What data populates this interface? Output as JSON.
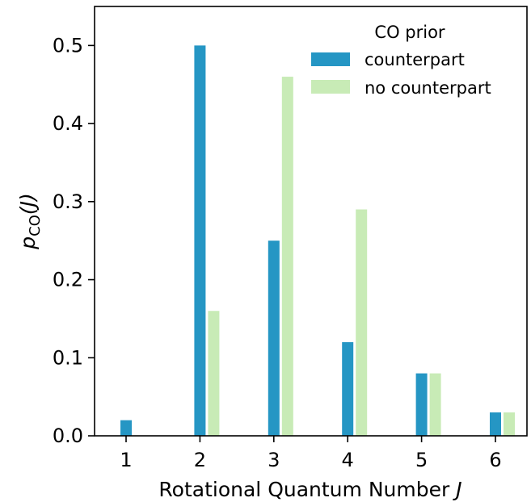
{
  "chart_data": {
    "type": "bar",
    "categories": [
      "1",
      "2",
      "3",
      "4",
      "5",
      "6"
    ],
    "series": [
      {
        "name": "counterpart",
        "values": [
          0.02,
          0.5,
          0.25,
          0.12,
          0.08,
          0.03
        ],
        "color": "#2596c4"
      },
      {
        "name": "no counterpart",
        "values": [
          0.0,
          0.16,
          0.46,
          0.29,
          0.08,
          0.03
        ],
        "color": "#c8ebb6"
      }
    ],
    "xlabel": {
      "main": "Rotational Quantum Number ",
      "var": "J"
    },
    "ylabel": {
      "p": "p",
      "sub": "CO",
      "arg": "(J)"
    },
    "ylim": [
      0,
      0.55
    ],
    "yticks": [
      0.0,
      0.1,
      0.2,
      0.3,
      0.4,
      0.5
    ],
    "ytick_labels": [
      "0.0",
      "0.1",
      "0.2",
      "0.3",
      "0.4",
      "0.5"
    ],
    "legend": {
      "title": "CO prior",
      "position": "top-right"
    },
    "grid": false
  }
}
